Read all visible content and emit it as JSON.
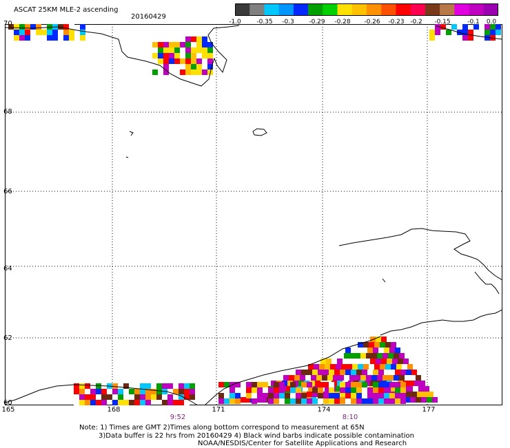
{
  "header": {
    "title": "ASCAT 25KM MLE-2 ascending",
    "date": "20160429"
  },
  "colorbar": {
    "labels": [
      "-1.0",
      "-0.35",
      "-0.3",
      "-0.29",
      "-0.28",
      "-0.26",
      "-0.23",
      "-0.2",
      "-0.15",
      "-0.1",
      "0.0"
    ],
    "colors": [
      "#3a3a3a",
      "#808080",
      "#00c8ff",
      "#0096ff",
      "#0028ff",
      "#00a000",
      "#00d000",
      "#ffe000",
      "#ffc000",
      "#ff9000",
      "#ff5000",
      "#ff0000",
      "#ff0050",
      "#7a3a1a",
      "#b87848",
      "#e000e0",
      "#c000c0",
      "#9a00b0"
    ]
  },
  "map": {
    "lat_labels": [
      "70",
      "68",
      "66",
      "64",
      "62",
      "60"
    ],
    "lon_labels": [
      "165",
      "168",
      "171",
      "174",
      "177"
    ],
    "times": [
      "9:52",
      "8:10"
    ]
  },
  "notes": {
    "line1": "Note: 1) Times are GMT 2)Times along bottom correspond to measurement at 65N",
    "line2": "3)Data buffer is 22 hrs from 20160429 4) Black wind barbs indicate possible contamination",
    "line3": "NOAA/NESDIS/Center for Satellite Applications and Research"
  }
}
